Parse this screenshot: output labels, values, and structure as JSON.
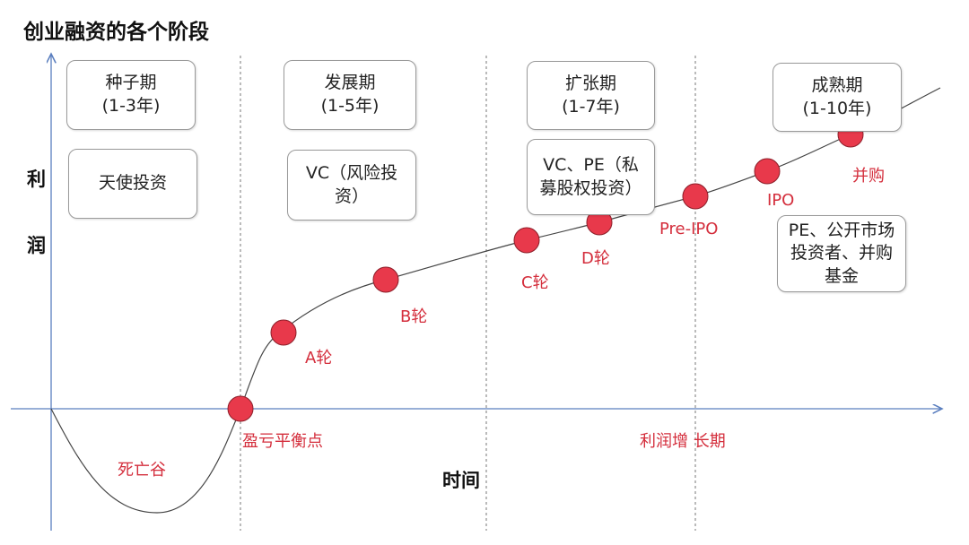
{
  "title": "创业融资的各个阶段",
  "y_axis_label": [
    "利",
    "润"
  ],
  "x_axis_label": "时间",
  "stages": [
    {
      "name": "种子期",
      "years": "(1-3年)",
      "investors": "天使投资"
    },
    {
      "name": "发展期",
      "years": "(1-5年)",
      "investors": "VC（风险投资）"
    },
    {
      "name": "扩张期",
      "years": "(1-7年)",
      "investors": "VC、PE（私募股权投资）"
    },
    {
      "name": "成熟期",
      "years": "(1-10年)",
      "investors": "PE、公开市场投资者、并购基金"
    }
  ],
  "milestones": [
    "盈亏平衡点",
    "A轮",
    "B轮",
    "C轮",
    "D轮",
    "Pre-IPO",
    "IPO",
    "并购"
  ],
  "annotations": {
    "valley": "死亡谷",
    "growth": "利润增 长期"
  }
}
